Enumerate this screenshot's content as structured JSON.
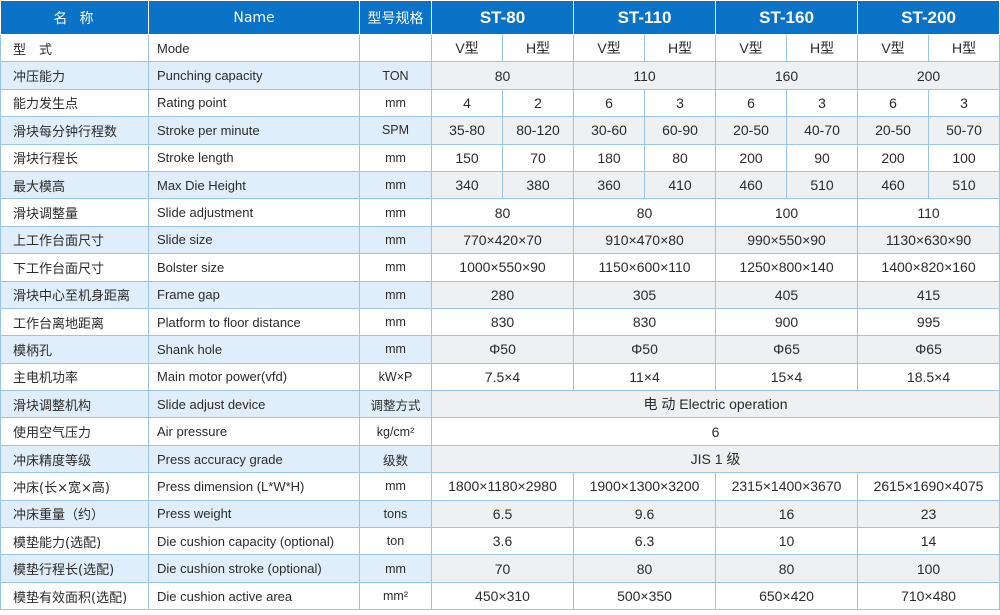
{
  "header": {
    "name_cn": "名称",
    "name_en": "Name",
    "spec": "型号规格",
    "models": [
      "ST-80",
      "ST-110",
      "ST-160",
      "ST-200"
    ]
  },
  "rows": [
    {
      "cn": "型　式",
      "en": "Mode",
      "unit": "",
      "values": [
        [
          "V型",
          1
        ],
        [
          "H型",
          1
        ],
        [
          "V型",
          1
        ],
        [
          "H型",
          1
        ],
        [
          "V型",
          1
        ],
        [
          "H型",
          1
        ],
        [
          "V型",
          1
        ],
        [
          "H型",
          1
        ]
      ]
    },
    {
      "cn": "冲压能力",
      "en": "Punching capacity",
      "unit": "TON",
      "values": [
        [
          "80",
          2
        ],
        [
          "110",
          2
        ],
        [
          "160",
          2
        ],
        [
          "200",
          2
        ]
      ]
    },
    {
      "cn": "能力发生点",
      "en": "Rating point",
      "unit": "mm",
      "values": [
        [
          "4",
          1
        ],
        [
          "2",
          1
        ],
        [
          "6",
          1
        ],
        [
          "3",
          1
        ],
        [
          "6",
          1
        ],
        [
          "3",
          1
        ],
        [
          "6",
          1
        ],
        [
          "3",
          1
        ]
      ]
    },
    {
      "cn": "滑块每分钟行程数",
      "en": "Stroke per minute",
      "unit": "SPM",
      "values": [
        [
          "35-80",
          1
        ],
        [
          "80-120",
          1
        ],
        [
          "30-60",
          1
        ],
        [
          "60-90",
          1
        ],
        [
          "20-50",
          1
        ],
        [
          "40-70",
          1
        ],
        [
          "20-50",
          1
        ],
        [
          "50-70",
          1
        ]
      ]
    },
    {
      "cn": "滑块行程长",
      "en": "Stroke length",
      "unit": "mm",
      "values": [
        [
          "150",
          1
        ],
        [
          "70",
          1
        ],
        [
          "180",
          1
        ],
        [
          "80",
          1
        ],
        [
          "200",
          1
        ],
        [
          "90",
          1
        ],
        [
          "200",
          1
        ],
        [
          "100",
          1
        ]
      ]
    },
    {
      "cn": "最大模高",
      "en": "Max Die Height",
      "unit": "mm",
      "values": [
        [
          "340",
          1
        ],
        [
          "380",
          1
        ],
        [
          "360",
          1
        ],
        [
          "410",
          1
        ],
        [
          "460",
          1
        ],
        [
          "510",
          1
        ],
        [
          "460",
          1
        ],
        [
          "510",
          1
        ]
      ]
    },
    {
      "cn": "滑块调整量",
      "en": "Slide adjustment",
      "unit": "mm",
      "values": [
        [
          "80",
          2
        ],
        [
          "80",
          2
        ],
        [
          "100",
          2
        ],
        [
          "110",
          2
        ]
      ]
    },
    {
      "cn": "上工作台面尺寸",
      "en": "Slide size",
      "unit": "mm",
      "values": [
        [
          "770×420×70",
          2
        ],
        [
          "910×470×80",
          2
        ],
        [
          "990×550×90",
          2
        ],
        [
          "1130×630×90",
          2
        ]
      ]
    },
    {
      "cn": "下工作台面尺寸",
      "en": "Bolster size",
      "unit": "mm",
      "values": [
        [
          "1000×550×90",
          2
        ],
        [
          "1150×600×110",
          2
        ],
        [
          "1250×800×140",
          2
        ],
        [
          "1400×820×160",
          2
        ]
      ]
    },
    {
      "cn": "滑块中心至机身距离",
      "en": "Frame gap",
      "unit": "mm",
      "values": [
        [
          "280",
          2
        ],
        [
          "305",
          2
        ],
        [
          "405",
          2
        ],
        [
          "415",
          2
        ]
      ]
    },
    {
      "cn": "工作台离地距离",
      "en": "Platform to floor distance",
      "unit": "mm",
      "values": [
        [
          "830",
          2
        ],
        [
          "830",
          2
        ],
        [
          "900",
          2
        ],
        [
          "995",
          2
        ]
      ]
    },
    {
      "cn": "模柄孔",
      "en": "Shank hole",
      "unit": "mm",
      "values": [
        [
          "Φ50",
          2
        ],
        [
          "Φ50",
          2
        ],
        [
          "Φ65",
          2
        ],
        [
          "Φ65",
          2
        ]
      ]
    },
    {
      "cn": "主电机功率",
      "en": "Main motor power(vfd)",
      "unit": "kW×P",
      "values": [
        [
          "7.5×4",
          2
        ],
        [
          "11×4",
          2
        ],
        [
          "15×4",
          2
        ],
        [
          "18.5×4",
          2
        ]
      ]
    },
    {
      "cn": "滑块调整机构",
      "en": "Slide adjust device",
      "unit": "调整方式",
      "values": [
        [
          "电 动 Electric operation",
          8
        ]
      ]
    },
    {
      "cn": "使用空气压力",
      "en": "Air pressure",
      "unit": "kg/cm²",
      "values": [
        [
          "6",
          8
        ]
      ]
    },
    {
      "cn": "冲床精度等级",
      "en": "Press accuracy grade",
      "unit": "级数",
      "values": [
        [
          "JIS 1 级",
          8
        ]
      ]
    },
    {
      "cn": "冲床(长×宽×高)",
      "en": "Press dimension (L*W*H)",
      "unit": "mm",
      "values": [
        [
          "1800×1180×2980",
          2
        ],
        [
          "1900×1300×3200",
          2
        ],
        [
          "2315×1400×3670",
          2
        ],
        [
          "2615×1690×4075",
          2
        ]
      ]
    },
    {
      "cn": "冲床重量（约）",
      "en": "Press weight",
      "unit": "tons",
      "values": [
        [
          "6.5",
          2
        ],
        [
          "9.6",
          2
        ],
        [
          "16",
          2
        ],
        [
          "23",
          2
        ]
      ]
    },
    {
      "cn": "模垫能力(选配)",
      "en": "Die cushion capacity (optional)",
      "unit": "ton",
      "values": [
        [
          "3.6",
          2
        ],
        [
          "6.3",
          2
        ],
        [
          "10",
          2
        ],
        [
          "14",
          2
        ]
      ]
    },
    {
      "cn": "模垫行程长(选配)",
      "en": "Die cushion stroke (optional)",
      "unit": "mm",
      "values": [
        [
          "70",
          2
        ],
        [
          "80",
          2
        ],
        [
          "80",
          2
        ],
        [
          "100",
          2
        ]
      ]
    },
    {
      "cn": "模垫有效面积(选配)",
      "en": "Die cushion active area",
      "unit": "mm²",
      "values": [
        [
          "450×310",
          2
        ],
        [
          "500×350",
          2
        ],
        [
          "650×420",
          2
        ],
        [
          "710×480",
          2
        ]
      ]
    }
  ]
}
